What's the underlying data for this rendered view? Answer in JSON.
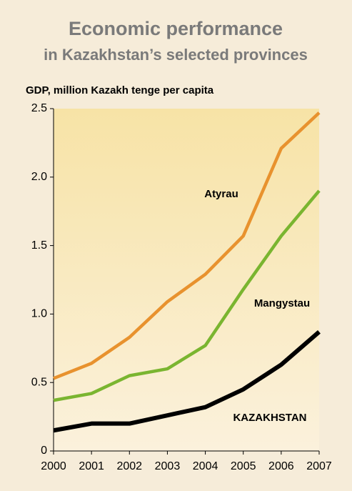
{
  "chart_data": {
    "type": "line",
    "title": "Economic performance",
    "subtitle": "in Kazakhstan’s selected provinces",
    "y_label": "GDP, million Kazakh tenge per capita",
    "x": [
      2000,
      2001,
      2002,
      2003,
      2004,
      2005,
      2006,
      2007
    ],
    "xlim": [
      2000,
      2007
    ],
    "xticks": [
      2000,
      2001,
      2002,
      2003,
      2004,
      2005,
      2006,
      2007
    ],
    "ylim": [
      0,
      2.5
    ],
    "yticks": [
      0,
      0.5,
      {
        "value": 1,
        "label": "1.0"
      },
      1.5,
      {
        "value": 2,
        "label": "2.0"
      },
      2.5
    ],
    "series": [
      {
        "name": "Atyrau",
        "color": "#e8922e",
        "values": [
          0.53,
          0.64,
          0.83,
          1.09,
          1.29,
          1.57,
          2.21,
          2.47
        ]
      },
      {
        "name": "Mangystau",
        "color": "#7ab530",
        "values": [
          0.37,
          0.42,
          0.55,
          0.6,
          0.77,
          1.18,
          1.57,
          1.9
        ]
      },
      {
        "name": "KAZAKHSTAN",
        "color": "#000000",
        "values": [
          0.15,
          0.2,
          0.2,
          0.26,
          0.32,
          0.45,
          0.63,
          0.87
        ]
      }
    ]
  }
}
